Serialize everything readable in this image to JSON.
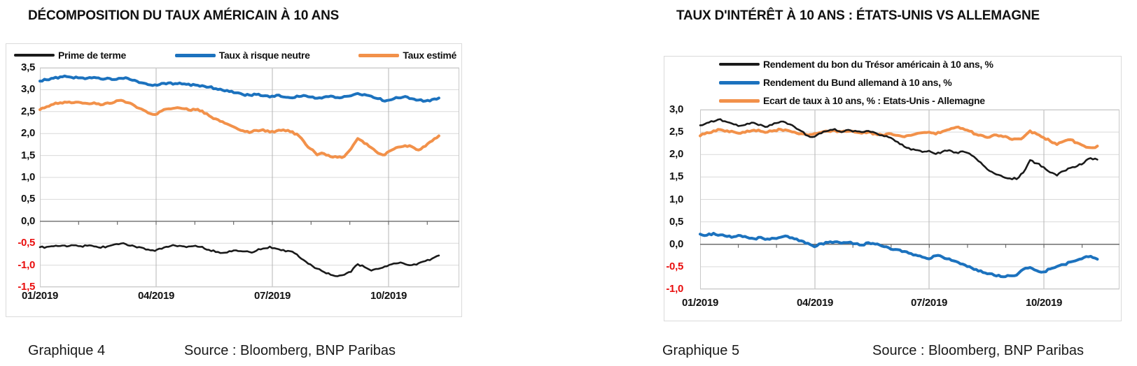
{
  "colors": {
    "line_black": "#1a1a1a",
    "line_blue": "#1c72be",
    "line_orange": "#f2914a",
    "negative_label": "#e90d0d",
    "grid": "#d9d9d9",
    "grid_vertical": "#b5b5b5",
    "axis": "#6e6e6e",
    "plot_border": "#c9c9c9",
    "box_border": "#dadada"
  },
  "chart_data": [
    {
      "type": "line",
      "title": "DÉCOMPOSITION DU TAUX AMÉRICAIN À 10 ANS",
      "caption": "Graphique 4",
      "source": "Source : Bloomberg, BNP Paribas",
      "legend_position": "top-horizontal",
      "grid": true,
      "x_tick_labels": [
        "01/2019",
        "04/2019",
        "07/2019",
        "10/2019"
      ],
      "ylim": [
        -1.5,
        3.5
      ],
      "y_step": 0.5,
      "y_tick_labels": [
        "3,5",
        "3,0",
        "2,5",
        "2,0",
        "1,5",
        "1,0",
        "0,5",
        "0,0",
        "-0,5",
        "-1,0",
        "-1,5"
      ],
      "data_end_month": 10.3,
      "series": [
        {
          "name": "Prime de terme",
          "color": "#1a1a1a",
          "width": 2.6,
          "values": [
            -0.6,
            -0.58,
            -0.57,
            -0.56,
            -0.57,
            -0.55,
            -0.57,
            -0.55,
            -0.58,
            -0.6,
            -0.57,
            -0.52,
            -0.5,
            -0.55,
            -0.58,
            -0.6,
            -0.64,
            -0.68,
            -0.62,
            -0.58,
            -0.55,
            -0.56,
            -0.58,
            -0.55,
            -0.58,
            -0.65,
            -0.7,
            -0.72,
            -0.68,
            -0.66,
            -0.69,
            -0.71,
            -0.67,
            -0.62,
            -0.58,
            -0.62,
            -0.66,
            -0.68,
            -0.76,
            -0.88,
            -0.98,
            -1.08,
            -1.15,
            -1.22,
            -1.26,
            -1.22,
            -1.16,
            -0.97,
            -1.05,
            -1.12,
            -1.08,
            -1.03,
            -0.98,
            -0.95,
            -0.97,
            -1.0,
            -0.96,
            -0.9,
            -0.85,
            -0.78
          ]
        },
        {
          "name": "Taux à risque neutre",
          "color": "#1c72be",
          "width": 4,
          "values": [
            3.2,
            3.23,
            3.26,
            3.29,
            3.3,
            3.27,
            3.28,
            3.26,
            3.28,
            3.25,
            3.27,
            3.24,
            3.26,
            3.25,
            3.21,
            3.16,
            3.12,
            3.11,
            3.14,
            3.15,
            3.13,
            3.14,
            3.12,
            3.1,
            3.09,
            3.06,
            3.03,
            2.99,
            2.96,
            2.92,
            2.89,
            2.87,
            2.89,
            2.86,
            2.84,
            2.87,
            2.84,
            2.82,
            2.85,
            2.87,
            2.83,
            2.8,
            2.83,
            2.86,
            2.82,
            2.84,
            2.87,
            2.91,
            2.89,
            2.85,
            2.8,
            2.74,
            2.78,
            2.82,
            2.84,
            2.8,
            2.76,
            2.75,
            2.77,
            2.81
          ]
        },
        {
          "name": "Taux estimé",
          "color": "#f2914a",
          "width": 4,
          "values": [
            2.55,
            2.62,
            2.67,
            2.71,
            2.72,
            2.7,
            2.71,
            2.69,
            2.7,
            2.65,
            2.69,
            2.72,
            2.75,
            2.7,
            2.63,
            2.56,
            2.48,
            2.43,
            2.52,
            2.57,
            2.58,
            2.58,
            2.54,
            2.55,
            2.51,
            2.41,
            2.33,
            2.27,
            2.2,
            2.12,
            2.06,
            2.03,
            2.07,
            2.08,
            2.04,
            2.06,
            2.08,
            2.05,
            1.98,
            1.82,
            1.65,
            1.52,
            1.55,
            1.48,
            1.45,
            1.48,
            1.65,
            1.88,
            1.78,
            1.68,
            1.55,
            1.52,
            1.63,
            1.7,
            1.73,
            1.7,
            1.62,
            1.72,
            1.83,
            1.95
          ]
        }
      ]
    },
    {
      "type": "line",
      "title": "TAUX D'INTÉRÊT À 10 ANS : ÉTATS-UNIS VS ALLEMAGNE",
      "caption": "Graphique 5",
      "source": "Source : Bloomberg, BNP Paribas",
      "legend_position": "top-left-stacked",
      "grid": true,
      "x_tick_labels": [
        "01/2019",
        "04/2019",
        "07/2019",
        "10/2019"
      ],
      "ylim": [
        -1.0,
        3.0
      ],
      "y_step": 0.5,
      "y_tick_labels": [
        "3,0",
        "2,5",
        "2,0",
        "1,5",
        "1,0",
        "0,5",
        "0,0",
        "-0,5",
        "-1,0"
      ],
      "data_end_month": 10.4,
      "series": [
        {
          "name": "Rendement du bon du Trésor américain à 10 ans, %",
          "color": "#1a1a1a",
          "width": 2.6,
          "values": [
            2.66,
            2.7,
            2.74,
            2.78,
            2.73,
            2.68,
            2.64,
            2.68,
            2.71,
            2.66,
            2.62,
            2.7,
            2.74,
            2.68,
            2.62,
            2.52,
            2.42,
            2.39,
            2.48,
            2.52,
            2.56,
            2.51,
            2.55,
            2.52,
            2.5,
            2.53,
            2.48,
            2.43,
            2.38,
            2.3,
            2.22,
            2.14,
            2.1,
            2.05,
            2.08,
            2.02,
            2.06,
            2.09,
            2.04,
            2.07,
            2.02,
            1.9,
            1.76,
            1.64,
            1.56,
            1.5,
            1.47,
            1.46,
            1.6,
            1.88,
            1.8,
            1.72,
            1.6,
            1.54,
            1.63,
            1.7,
            1.75,
            1.82,
            1.92,
            1.88
          ]
        },
        {
          "name": "Rendement du Bund allemand à 10 ans, %",
          "color": "#1c72be",
          "width": 4,
          "values": [
            0.22,
            0.2,
            0.24,
            0.21,
            0.18,
            0.16,
            0.19,
            0.15,
            0.12,
            0.15,
            0.11,
            0.13,
            0.16,
            0.18,
            0.12,
            0.08,
            0.02,
            -0.05,
            0.01,
            0.04,
            0.06,
            0.02,
            0.04,
            0.01,
            -0.02,
            0.03,
            0.0,
            -0.04,
            -0.08,
            -0.12,
            -0.16,
            -0.2,
            -0.24,
            -0.28,
            -0.32,
            -0.25,
            -0.28,
            -0.33,
            -0.38,
            -0.44,
            -0.5,
            -0.56,
            -0.62,
            -0.66,
            -0.7,
            -0.72,
            -0.7,
            -0.68,
            -0.55,
            -0.52,
            -0.58,
            -0.62,
            -0.55,
            -0.5,
            -0.45,
            -0.4,
            -0.35,
            -0.3,
            -0.27,
            -0.33
          ]
        },
        {
          "name": "Ecart de taux à 10 ans, % : Etats-Unis - Allemagne",
          "color": "#f2914a",
          "width": 4,
          "values": [
            2.42,
            2.48,
            2.52,
            2.55,
            2.53,
            2.5,
            2.48,
            2.52,
            2.55,
            2.52,
            2.5,
            2.53,
            2.56,
            2.54,
            2.5,
            2.47,
            2.44,
            2.46,
            2.49,
            2.52,
            2.54,
            2.5,
            2.52,
            2.5,
            2.48,
            2.5,
            2.46,
            2.44,
            2.46,
            2.43,
            2.4,
            2.42,
            2.45,
            2.48,
            2.5,
            2.46,
            2.52,
            2.56,
            2.6,
            2.58,
            2.52,
            2.45,
            2.42,
            2.38,
            2.44,
            2.4,
            2.36,
            2.34,
            2.38,
            2.52,
            2.46,
            2.38,
            2.3,
            2.22,
            2.3,
            2.33,
            2.26,
            2.2,
            2.15,
            2.18
          ]
        }
      ]
    }
  ]
}
